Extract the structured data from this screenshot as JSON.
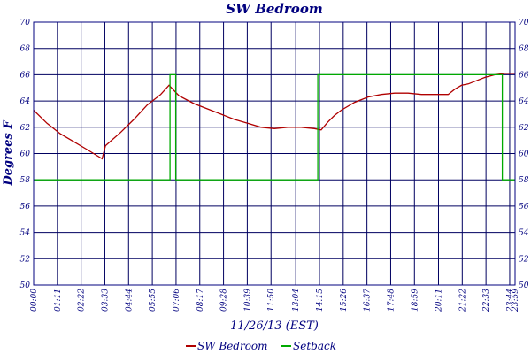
{
  "chart_data": {
    "type": "line",
    "title": "SW Bedroom",
    "xlabel": "11/26/13 (EST)",
    "ylabel": "Degrees F",
    "ylim": [
      50,
      70
    ],
    "yticks": [
      50,
      52,
      54,
      56,
      58,
      60,
      62,
      64,
      66,
      68,
      70
    ],
    "xlim_minutes": [
      0,
      1440
    ],
    "xticks": [
      {
        "minute": 0,
        "label": "00:00"
      },
      {
        "minute": 71,
        "label": "01:11"
      },
      {
        "minute": 142,
        "label": "02:22"
      },
      {
        "minute": 213,
        "label": "03:33"
      },
      {
        "minute": 284,
        "label": "04:44"
      },
      {
        "minute": 355,
        "label": "05:55"
      },
      {
        "minute": 426,
        "label": "07:06"
      },
      {
        "minute": 497,
        "label": "08:17"
      },
      {
        "minute": 568,
        "label": "09:28"
      },
      {
        "minute": 639,
        "label": "10:39"
      },
      {
        "minute": 710,
        "label": "11:50"
      },
      {
        "minute": 784,
        "label": "13:04"
      },
      {
        "minute": 855,
        "label": "14:15"
      },
      {
        "minute": 926,
        "label": "15:26"
      },
      {
        "minute": 997,
        "label": "16:37"
      },
      {
        "minute": 1068,
        "label": "17:48"
      },
      {
        "minute": 1139,
        "label": "18:59"
      },
      {
        "minute": 1211,
        "label": "20:11"
      },
      {
        "minute": 1282,
        "label": "21:22"
      },
      {
        "minute": 1353,
        "label": "22:33"
      },
      {
        "minute": 1424,
        "label": "23:44"
      },
      {
        "minute": 1440,
        "label": "23:59"
      }
    ],
    "grid": true,
    "legend_position": "bottom",
    "series": [
      {
        "name": "SW Bedroom",
        "color": "#b00000",
        "points": [
          [
            0,
            63.3
          ],
          [
            40,
            62.3
          ],
          [
            80,
            61.5
          ],
          [
            120,
            60.9
          ],
          [
            160,
            60.3
          ],
          [
            205,
            59.6
          ],
          [
            215,
            60.6
          ],
          [
            260,
            61.6
          ],
          [
            300,
            62.6
          ],
          [
            340,
            63.7
          ],
          [
            380,
            64.5
          ],
          [
            405,
            65.2
          ],
          [
            435,
            64.4
          ],
          [
            480,
            63.8
          ],
          [
            520,
            63.4
          ],
          [
            560,
            63.0
          ],
          [
            600,
            62.6
          ],
          [
            640,
            62.3
          ],
          [
            680,
            62.0
          ],
          [
            720,
            61.9
          ],
          [
            760,
            62.0
          ],
          [
            800,
            62.0
          ],
          [
            840,
            61.9
          ],
          [
            860,
            61.8
          ],
          [
            880,
            62.4
          ],
          [
            900,
            62.9
          ],
          [
            920,
            63.3
          ],
          [
            960,
            63.9
          ],
          [
            1000,
            64.3
          ],
          [
            1040,
            64.5
          ],
          [
            1080,
            64.6
          ],
          [
            1120,
            64.6
          ],
          [
            1160,
            64.5
          ],
          [
            1200,
            64.5
          ],
          [
            1240,
            64.5
          ],
          [
            1260,
            64.9
          ],
          [
            1280,
            65.2
          ],
          [
            1300,
            65.3
          ],
          [
            1320,
            65.5
          ],
          [
            1350,
            65.8
          ],
          [
            1380,
            66.0
          ],
          [
            1410,
            66.1
          ],
          [
            1440,
            66.1
          ]
        ]
      },
      {
        "name": "Setback",
        "color": "#00aa00",
        "points": [
          [
            0,
            58
          ],
          [
            408,
            58
          ],
          [
            408,
            66
          ],
          [
            425,
            66
          ],
          [
            425,
            58
          ],
          [
            850,
            58
          ],
          [
            850,
            66
          ],
          [
            1402,
            66
          ],
          [
            1402,
            58
          ],
          [
            1440,
            58
          ]
        ]
      }
    ]
  }
}
